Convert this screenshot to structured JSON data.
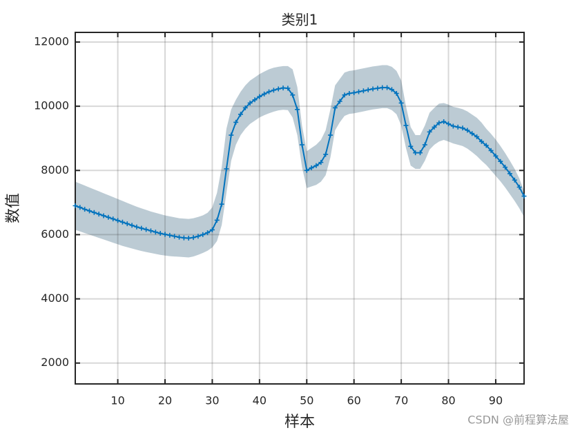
{
  "chart_data": {
    "type": "line",
    "title": "类别1",
    "x_label": "样本",
    "y_label": "数值",
    "x": [
      1,
      2,
      3,
      4,
      5,
      6,
      7,
      8,
      9,
      10,
      11,
      12,
      13,
      14,
      15,
      16,
      17,
      18,
      19,
      20,
      21,
      22,
      23,
      24,
      25,
      26,
      27,
      28,
      29,
      30,
      31,
      32,
      33,
      34,
      35,
      36,
      37,
      38,
      39,
      40,
      41,
      42,
      43,
      44,
      45,
      46,
      47,
      48,
      49,
      50,
      51,
      52,
      53,
      54,
      55,
      56,
      57,
      58,
      59,
      60,
      61,
      62,
      63,
      64,
      65,
      66,
      67,
      68,
      69,
      70,
      71,
      72,
      73,
      74,
      75,
      76,
      77,
      78,
      79,
      80,
      81,
      82,
      83,
      84,
      85,
      86,
      87,
      88,
      89,
      90,
      91,
      92,
      93,
      94,
      95,
      96
    ],
    "values": [
      6900,
      6850,
      6790,
      6740,
      6690,
      6640,
      6590,
      6540,
      6490,
      6440,
      6390,
      6340,
      6290,
      6240,
      6200,
      6160,
      6120,
      6080,
      6040,
      6010,
      5980,
      5950,
      5920,
      5900,
      5890,
      5910,
      5950,
      6000,
      6060,
      6150,
      6450,
      6950,
      8050,
      9100,
      9500,
      9750,
      9950,
      10100,
      10200,
      10300,
      10380,
      10450,
      10500,
      10540,
      10570,
      10560,
      10350,
      9900,
      8800,
      8000,
      8080,
      8150,
      8250,
      8500,
      9100,
      9950,
      10150,
      10350,
      10400,
      10420,
      10450,
      10480,
      10510,
      10540,
      10560,
      10580,
      10580,
      10520,
      10400,
      10100,
      9400,
      8750,
      8550,
      8550,
      8800,
      9200,
      9350,
      9480,
      9520,
      9450,
      9380,
      9350,
      9320,
      9250,
      9150,
      9050,
      8900,
      8780,
      8620,
      8450,
      8280,
      8100,
      7900,
      7700,
      7480,
      7200
    ],
    "upper": [
      7650,
      7590,
      7530,
      7470,
      7410,
      7350,
      7290,
      7230,
      7170,
      7110,
      7050,
      6990,
      6930,
      6870,
      6820,
      6770,
      6720,
      6680,
      6640,
      6600,
      6570,
      6540,
      6510,
      6500,
      6490,
      6510,
      6550,
      6600,
      6680,
      6850,
      7300,
      8100,
      9300,
      9900,
      10200,
      10450,
      10650,
      10800,
      10900,
      11000,
      11080,
      11150,
      11200,
      11230,
      11250,
      11250,
      11150,
      10600,
      9400,
      8600,
      8700,
      8800,
      8950,
      9250,
      9900,
      10650,
      10850,
      11050,
      11100,
      11120,
      11150,
      11180,
      11210,
      11240,
      11260,
      11280,
      11280,
      11230,
      11100,
      10800,
      10000,
      9350,
      9100,
      9100,
      9400,
      9800,
      9950,
      10080,
      10100,
      10050,
      9980,
      9950,
      9910,
      9840,
      9740,
      9640,
      9490,
      9300,
      9140,
      8960,
      8760,
      8540,
      8300,
      8050,
      7750,
      7350
    ],
    "lower": [
      6150,
      6100,
      6050,
      6000,
      5950,
      5900,
      5850,
      5800,
      5750,
      5700,
      5650,
      5610,
      5570,
      5530,
      5490,
      5460,
      5430,
      5400,
      5370,
      5350,
      5330,
      5320,
      5310,
      5300,
      5290,
      5320,
      5370,
      5430,
      5500,
      5600,
      5800,
      6300,
      7300,
      8300,
      8800,
      9100,
      9300,
      9450,
      9550,
      9650,
      9720,
      9780,
      9830,
      9870,
      9890,
      9880,
      9650,
      9100,
      8100,
      7450,
      7500,
      7550,
      7650,
      7850,
      8400,
      9250,
      9500,
      9700,
      9760,
      9780,
      9810,
      9840,
      9870,
      9900,
      9920,
      9940,
      9940,
      9880,
      9750,
      9400,
      8700,
      8150,
      8050,
      8050,
      8300,
      8650,
      8800,
      8900,
      8950,
      8900,
      8840,
      8800,
      8760,
      8680,
      8570,
      8450,
      8300,
      8170,
      8000,
      7830,
      7660,
      7470,
      7260,
      7050,
      6820,
      6550
    ],
    "color": "#0072bd",
    "band_color": "#bccbd4",
    "xlim": [
      1,
      96
    ],
    "ylim": [
      1350,
      12300
    ],
    "xticks": [
      10,
      20,
      30,
      40,
      50,
      60,
      70,
      80,
      90
    ],
    "yticks": [
      2000,
      4000,
      6000,
      8000,
      10000,
      12000
    ],
    "grid": true
  },
  "watermark": "CSDN @前程算法屋"
}
